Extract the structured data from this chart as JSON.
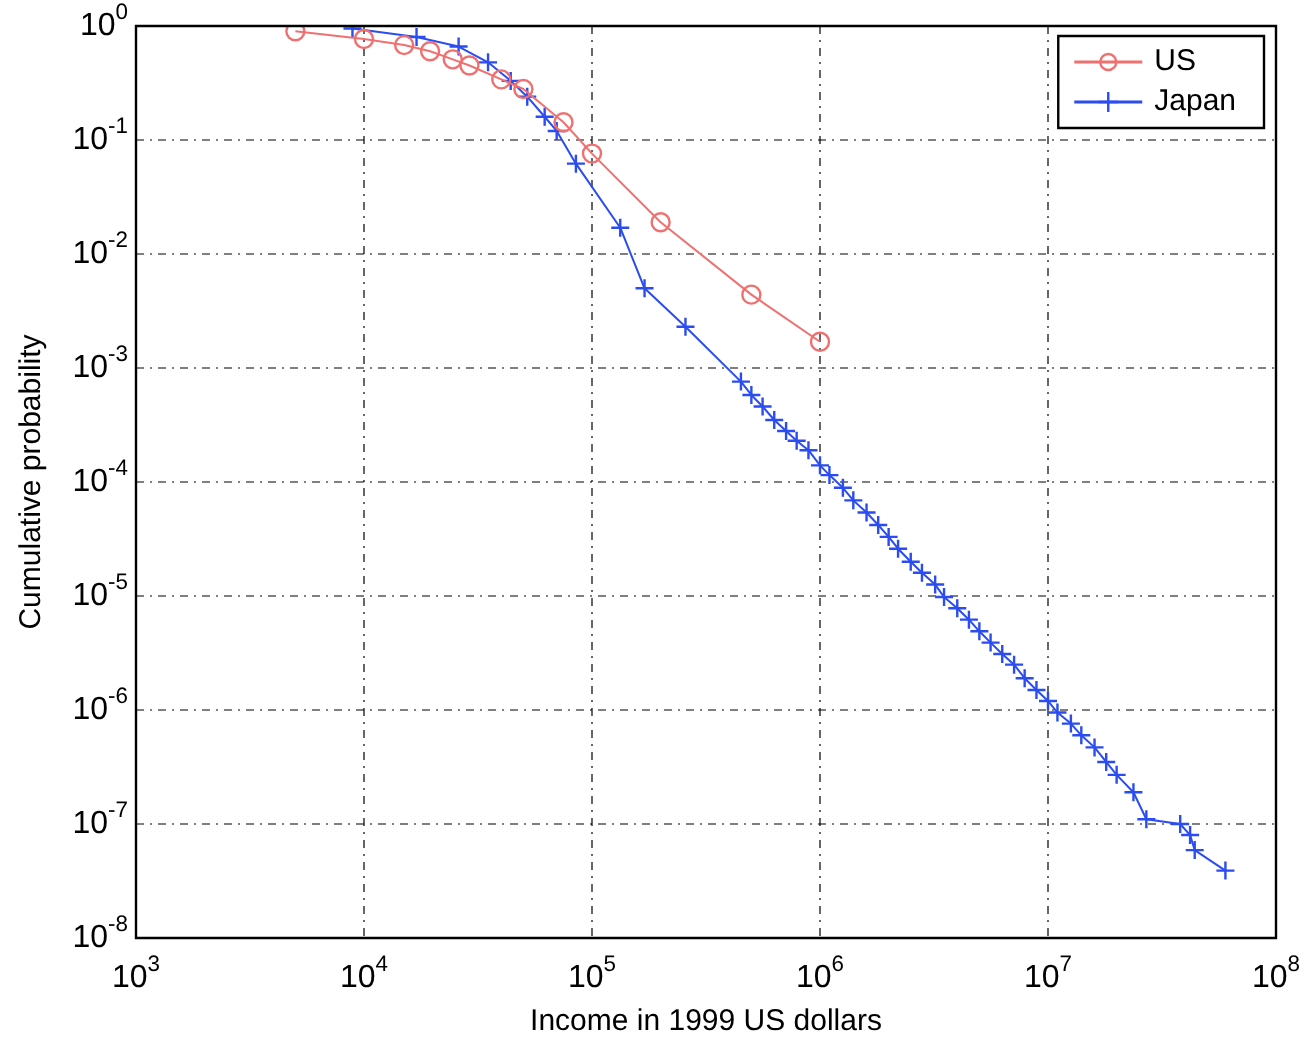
{
  "chart_data": {
    "type": "line",
    "xlabel": "Income in 1999 US dollars",
    "ylabel": "Cumulative probability",
    "log": "xy",
    "grid": true,
    "legend": "top right",
    "xlim": [
      1000,
      100000000
    ],
    "xticks": [
      {
        "value": 1000,
        "label": "10$^{3}$"
      },
      {
        "value": 10000,
        "label": "10$^{4}$"
      },
      {
        "value": 100000,
        "label": "10$^{5}$"
      },
      {
        "value": 1000000,
        "label": "10$^{6}$"
      },
      {
        "value": 10000000,
        "label": "10$^{7}$"
      },
      {
        "value": 100000000,
        "label": "10$^{8}$"
      }
    ],
    "ylim": [
      1e-08,
      1
    ],
    "yticks": [
      {
        "value": 1e-08,
        "label": "10$^{-8}$"
      },
      {
        "value": 1e-07,
        "label": "10$^{-7}$"
      },
      {
        "value": 1e-06,
        "label": "10$^{-6}$"
      },
      {
        "value": 1e-05,
        "label": "10$^{-5}$"
      },
      {
        "value": 0.0001,
        "label": "10$^{-4}$"
      },
      {
        "value": 0.001,
        "label": "10$^{-3}$"
      },
      {
        "value": 0.01,
        "label": "10$^{-2}$"
      },
      {
        "value": 0.1,
        "label": "10$^{-1}$"
      },
      {
        "value": 1,
        "label": "10$^{0}$"
      }
    ],
    "series": [
      {
        "name": "US",
        "color": "#f07070",
        "marker": "circle",
        "x": [
          5000,
          10000,
          15000,
          19500,
          24500,
          29000,
          40000,
          50000,
          75000,
          100000,
          200000,
          500000,
          1000000
        ],
        "values": [
          0.9,
          0.77,
          0.68,
          0.6,
          0.51,
          0.45,
          0.34,
          0.28,
          0.143,
          0.076,
          0.019,
          0.0044,
          0.0017
        ]
      },
      {
        "name": "Japan",
        "color": "#2a4cf0",
        "marker": "cross",
        "x": [
          8900,
          17000,
          26000,
          35000,
          44000,
          52000,
          62000,
          70000,
          85000,
          133000,
          170000,
          257000,
          450000,
          500000,
          560000,
          630000,
          710000,
          790000,
          890000,
          1000000,
          1100000,
          1260000,
          1400000,
          1600000,
          1800000,
          2000000,
          2200000,
          2500000,
          2800000,
          3200000,
          3500000,
          4000000,
          4500000,
          5000000,
          5600000,
          6300000,
          7100000,
          7900000,
          8900000,
          10000000,
          11000000,
          12600000,
          14000000,
          16000000,
          18000000,
          20000000,
          23700000,
          27000000,
          38000000,
          42000000,
          44000000,
          60000000
        ],
        "values": [
          0.95,
          0.8,
          0.66,
          0.48,
          0.33,
          0.24,
          0.16,
          0.12,
          0.062,
          0.017,
          0.005,
          0.0023,
          0.00076,
          0.00058,
          0.00046,
          0.00035,
          0.00028,
          0.00023,
          0.00019,
          0.00014,
          0.000115,
          8.9e-05,
          6.9e-05,
          5.4e-05,
          4.2e-05,
          3.3e-05,
          2.6e-05,
          2e-05,
          1.6e-05,
          1.26e-05,
          9.8e-06,
          7.8e-06,
          6.2e-06,
          4.9e-06,
          3.9e-06,
          3.1e-06,
          2.5e-06,
          1.9e-06,
          1.5e-06,
          1.2e-06,
          9.5e-07,
          7.6e-07,
          6e-07,
          4.7e-07,
          3.5e-07,
          2.7e-07,
          1.9e-07,
          1.1e-07,
          1e-07,
          8e-08,
          5.9e-08,
          3.9e-08
        ]
      }
    ]
  }
}
